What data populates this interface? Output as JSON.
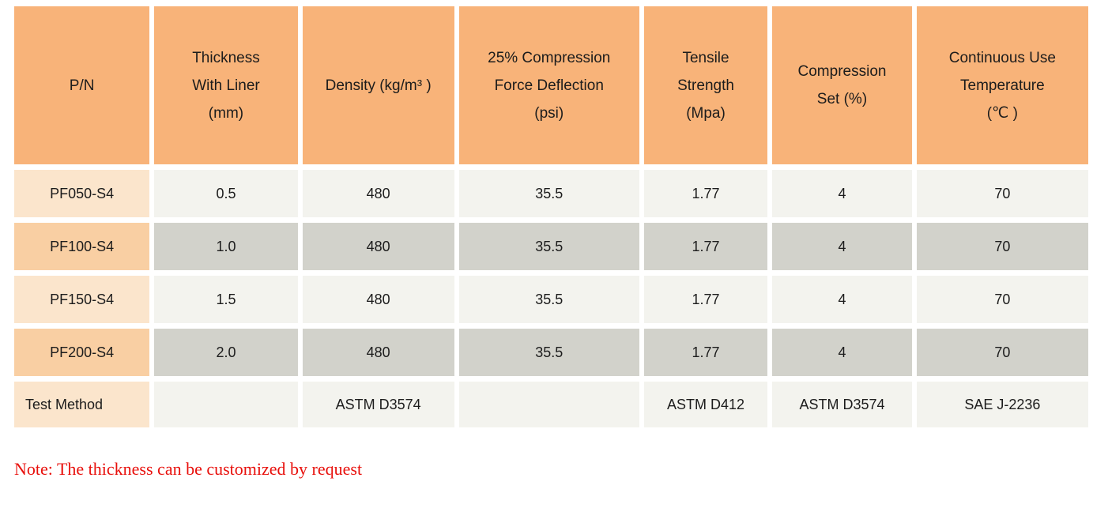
{
  "table": {
    "columns": [
      {
        "label": "P/N"
      },
      {
        "label": "Thickness\nWith Liner\n(mm)"
      },
      {
        "label": "Density (kg/m³ )"
      },
      {
        "label": "25% Compression\nForce Deflection\n(psi)"
      },
      {
        "label": "Tensile\nStrength\n(Mpa)"
      },
      {
        "label": "Compression\nSet (%)"
      },
      {
        "label": "Continuous Use\nTemperature\n(℃ )"
      }
    ],
    "rows": [
      {
        "pn": "PF050-S4",
        "values": [
          "0.5",
          "480",
          "35.5",
          "1.77",
          "4",
          "70"
        ]
      },
      {
        "pn": "PF100-S4",
        "values": [
          "1.0",
          "480",
          "35.5",
          "1.77",
          "4",
          "70"
        ]
      },
      {
        "pn": "PF150-S4",
        "values": [
          "1.5",
          "480",
          "35.5",
          "1.77",
          "4",
          "70"
        ]
      },
      {
        "pn": "PF200-S4",
        "values": [
          "2.0",
          "480",
          "35.5",
          "1.77",
          "4",
          "70"
        ]
      }
    ],
    "test_method_row": {
      "label": "Test Method",
      "values": [
        "",
        "ASTM D3574",
        "",
        "ASTM D412",
        "ASTM D3574",
        "SAE J-2236"
      ]
    }
  },
  "note": "Note: The thickness can be customized by request",
  "colors": {
    "header_bg": "#F8B379",
    "pn_light": "#FBE5CC",
    "pn_dark": "#F9CFA3",
    "cell_light": "#F3F3EE",
    "cell_dark": "#D2D2CB",
    "note_red": "#E8100C"
  }
}
